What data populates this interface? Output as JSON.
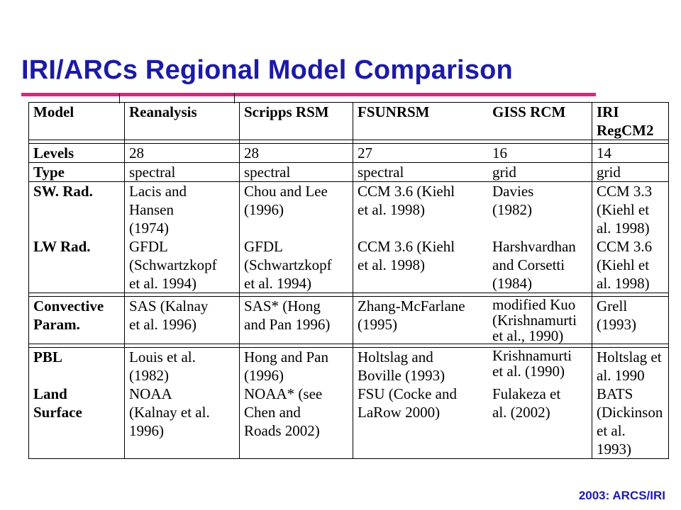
{
  "title": "IRI/ARCs Regional Model Comparison",
  "footer": "2003: ARCS/IRI",
  "table": {
    "header": {
      "model": "Model",
      "reanalysis": "Reanalysis",
      "scripps": "Scripps RSM",
      "fsunrsm": "FSUNRSM",
      "giss": "GISS RCM",
      "iri": "IRI\nRegCM2"
    },
    "levels": {
      "label": "Levels",
      "reanalysis": "28",
      "scripps": "28",
      "fsunrsm": "27",
      "giss": "16",
      "iri": "14"
    },
    "type": {
      "label": "Type",
      "reanalysis": "spectral",
      "scripps": "spectral",
      "fsunrsm": "spectral",
      "giss": "grid",
      "iri": "grid"
    },
    "sw_rad": {
      "label": "SW. Rad.",
      "reanalysis": "Lacis and\nHansen\n(1974)",
      "scripps": "Chou and Lee\n(1996)",
      "fsunrsm": "CCM 3.6 (Kiehl\net al. 1998)",
      "giss": "Davies\n(1982)",
      "iri": "CCM 3.3\n(Kiehl et\nal. 1998)"
    },
    "lw_rad": {
      "label": "LW Rad.",
      "reanalysis": "GFDL\n(Schwartzkopf\net al. 1994)",
      "scripps": "GFDL\n(Schwartzkopf\net al. 1994)",
      "fsunrsm": "CCM 3.6 (Kiehl\net al. 1998)",
      "giss": "Harshvardhan\nand Corsetti\n(1984)",
      "iri": "CCM 3.6\n(Kiehl et\nal. 1998)"
    },
    "convective": {
      "label": "Convective\nParam.",
      "reanalysis": "SAS (Kalnay\net al. 1996)",
      "scripps": "SAS* (Hong\nand Pan 1996)",
      "fsunrsm": "Zhang-McFarlane\n(1995)",
      "giss": "modified Kuo\n(Krishnamurti\net al., 1990)",
      "iri": "Grell\n(1993)"
    },
    "pbl": {
      "label": "PBL",
      "reanalysis": "Louis et al.\n(1982)",
      "scripps": "Hong and Pan\n(1996)",
      "fsunrsm": "Holtslag and\nBoville (1993)",
      "giss": "Krishnamurti\net al. (1990)",
      "iri": "Holtslag et\nal. 1990"
    },
    "land": {
      "label": "Land\nSurface",
      "reanalysis": "NOAA\n(Kalnay et al.\n1996)",
      "scripps": "NOAA* (see\nChen and\nRoads 2002)",
      "fsunrsm": "FSU (Cocke and\nLaRow 2000)",
      "giss": "Fulakeza et\nal. (2002)",
      "iri": "BATS\n(Dickinson\net al.\n1993)"
    }
  }
}
